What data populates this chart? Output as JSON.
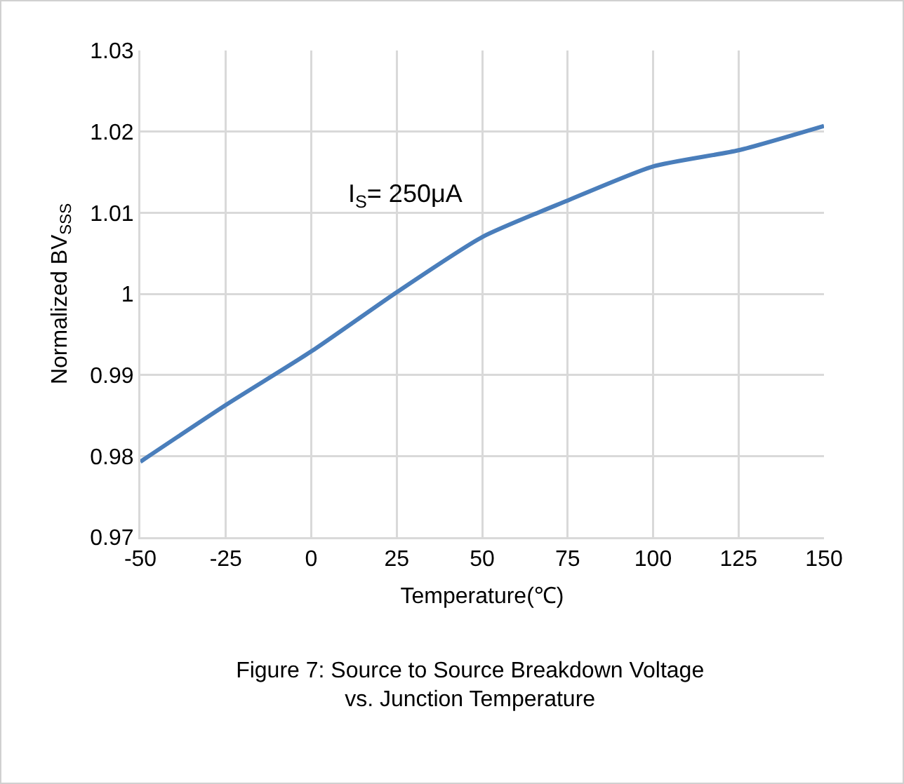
{
  "chart_data": {
    "type": "line",
    "title": "Figure 7: Source to Source Breakdown Voltage\nvs. Junction Temperature",
    "xlabel": "Temperature(℃)",
    "ylabel": "Normalized BV$_{SSS}$",
    "x": [
      -50,
      -25,
      0,
      25,
      50,
      75,
      100,
      125,
      150
    ],
    "series": [
      {
        "color": "#4a7ebb",
        "values": [
          0.9793,
          0.9863,
          0.9929,
          1.0002,
          1.007,
          1.0115,
          1.0157,
          1.0177,
          1.0207
        ]
      }
    ],
    "annotations": [
      "I$_{S}$= 250μA"
    ],
    "xlim": [
      -50,
      150
    ],
    "xticks": [
      -50,
      -25,
      0,
      25,
      50,
      75,
      100,
      125,
      150
    ],
    "ylim": [
      0.97,
      1.03
    ],
    "yticks": [
      0.97,
      0.98,
      0.99,
      1,
      1.01,
      1.02,
      1.03
    ],
    "grid": true,
    "marker": "none",
    "line_style": "solid"
  }
}
